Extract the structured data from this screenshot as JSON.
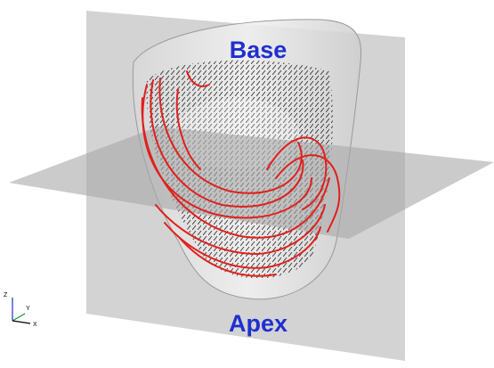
{
  "labels": {
    "top": "Base",
    "bottom": "Apex"
  },
  "axes": {
    "z": "Z",
    "y": "Y",
    "x": "X"
  }
}
